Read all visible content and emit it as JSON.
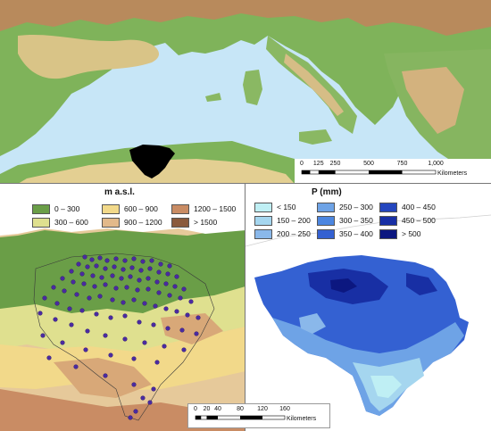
{
  "overview_map": {
    "scalebar": {
      "ticks": [
        "0",
        "125",
        "250",
        "500",
        "750",
        "1,000"
      ],
      "unit": "Kilometers"
    },
    "colors": {
      "sea": "#c7e6f7",
      "lowland": "#6fa84f",
      "hill": "#e6d79a",
      "mountain": "#c89a6a",
      "study_area": "#000000"
    }
  },
  "elevation_panel": {
    "legend_title": "m a.s.l.",
    "legend": [
      {
        "label": "0 – 300",
        "color": "#6a9e47"
      },
      {
        "label": "300 – 600",
        "color": "#dfe08f"
      },
      {
        "label": "600 – 900",
        "color": "#f2d98a"
      },
      {
        "label": "900 – 1200",
        "color": "#e2b98a"
      },
      {
        "label": "1200 – 1500",
        "color": "#c98c64"
      },
      {
        "label": "> 1500",
        "color": "#8a5a3c"
      }
    ],
    "station_color": "#4a2aa0",
    "scalebar": {
      "ticks": [
        "0",
        "20",
        "40",
        "80",
        "120",
        "160"
      ],
      "unit": "Kilometers"
    }
  },
  "precipitation_panel": {
    "legend_title": "P (mm)",
    "legend": [
      {
        "label": "< 150",
        "color": "#bfeff4"
      },
      {
        "label": "150 – 200",
        "color": "#a5d6ef"
      },
      {
        "label": "200 – 250",
        "color": "#8ab8ea"
      },
      {
        "label": "250 – 300",
        "color": "#6ea3e6"
      },
      {
        "label": "300 – 350",
        "color": "#4c86e0"
      },
      {
        "label": "350 – 400",
        "color": "#3461d2"
      },
      {
        "label": "400 – 450",
        "color": "#2446be"
      },
      {
        "label": "450 – 500",
        "color": "#182fa4"
      },
      {
        "label": "> 500",
        "color": "#0c1780"
      }
    ]
  }
}
